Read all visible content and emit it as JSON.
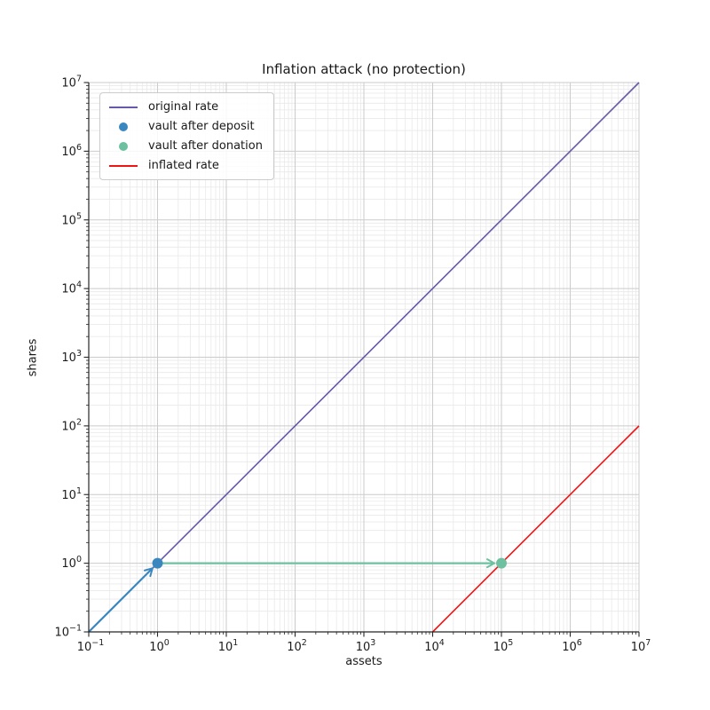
{
  "figure": {
    "background": "#ffffff"
  },
  "chart_data": {
    "type": "line",
    "title": "Inflation attack (no protection)",
    "xlabel": "assets",
    "ylabel": "shares",
    "xscale": "log",
    "yscale": "log",
    "xlim": [
      0.1,
      10000000
    ],
    "ylim": [
      0.1,
      10000000
    ],
    "x_tick_exponents": [
      -1,
      0,
      1,
      2,
      3,
      4,
      5,
      6,
      7
    ],
    "y_tick_exponents": [
      -1,
      0,
      1,
      2,
      3,
      4,
      5,
      6,
      7
    ],
    "grid": {
      "major": true,
      "minor": true,
      "major_color": "#cbcbcb",
      "minor_color": "#e9e9e9"
    },
    "axis_color": "#262626",
    "series": [
      {
        "name": "original rate",
        "kind": "line",
        "color": "#6459ab",
        "width": 1.6,
        "points": [
          [
            0.1,
            0.1
          ],
          [
            10000000,
            10000000
          ]
        ]
      },
      {
        "name": "inflated rate",
        "kind": "line",
        "color": "#f01515",
        "width": 1.6,
        "points": [
          [
            10000,
            0.1
          ],
          [
            10000000,
            100
          ]
        ]
      },
      {
        "name": "vault after deposit",
        "kind": "scatter",
        "color": "#3a87c0",
        "marker_radius": 6,
        "points": [
          [
            1,
            1
          ]
        ]
      },
      {
        "name": "vault after donation",
        "kind": "scatter",
        "color": "#6dc0a0",
        "marker_radius": 6,
        "points": [
          [
            100000,
            1
          ]
        ]
      }
    ],
    "annotations": [
      {
        "name": "deposit-arrow",
        "type": "arrow",
        "color": "#3a87c0",
        "width": 2.2,
        "from": [
          0.1,
          0.1
        ],
        "to": [
          1,
          1
        ]
      },
      {
        "name": "donation-arrow",
        "type": "arrow",
        "color": "#6dc0a0",
        "width": 2.2,
        "from": [
          1,
          1
        ],
        "to": [
          100000,
          1
        ]
      }
    ],
    "legend": {
      "position": "upper left",
      "entries": [
        {
          "label": "original rate",
          "swatch": "line",
          "color": "#6459ab"
        },
        {
          "label": "vault after deposit",
          "swatch": "dot",
          "color": "#3a87c0"
        },
        {
          "label": "vault after donation",
          "swatch": "dot",
          "color": "#6dc0a0"
        },
        {
          "label": "inflated rate",
          "swatch": "line",
          "color": "#f01515"
        }
      ]
    }
  }
}
